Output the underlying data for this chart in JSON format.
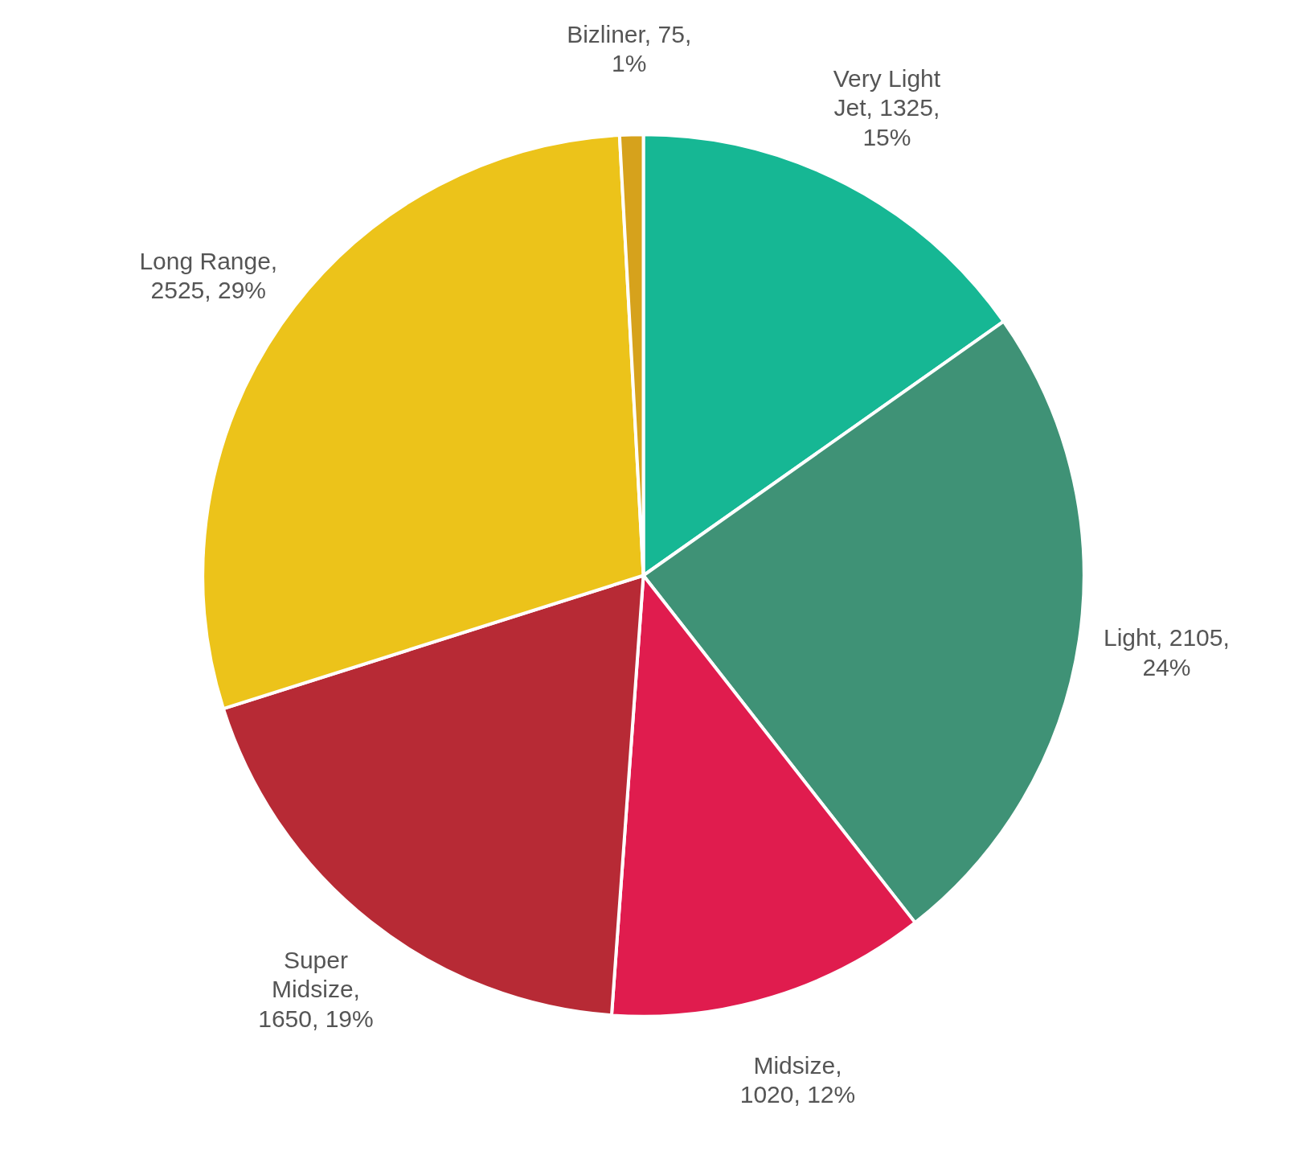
{
  "chart_data": {
    "type": "pie",
    "categories": [
      "Very Light Jet",
      "Light",
      "Midsize",
      "Super Midsize",
      "Long Range",
      "Bizliner"
    ],
    "values": [
      1325,
      2105,
      1020,
      1650,
      2525,
      75
    ],
    "value_labels": [
      ", 1325, 15%",
      ", 2105, 24%",
      ", 1020, 12%",
      ", 1650, 19%",
      ", 2525, 29%",
      ", 75, 1%"
    ],
    "colors": [
      "#16b794",
      "#3f9276",
      "#e01c4e",
      "#b72a35",
      "#ecc31a",
      "#d6a21c"
    ],
    "legend": false
  }
}
